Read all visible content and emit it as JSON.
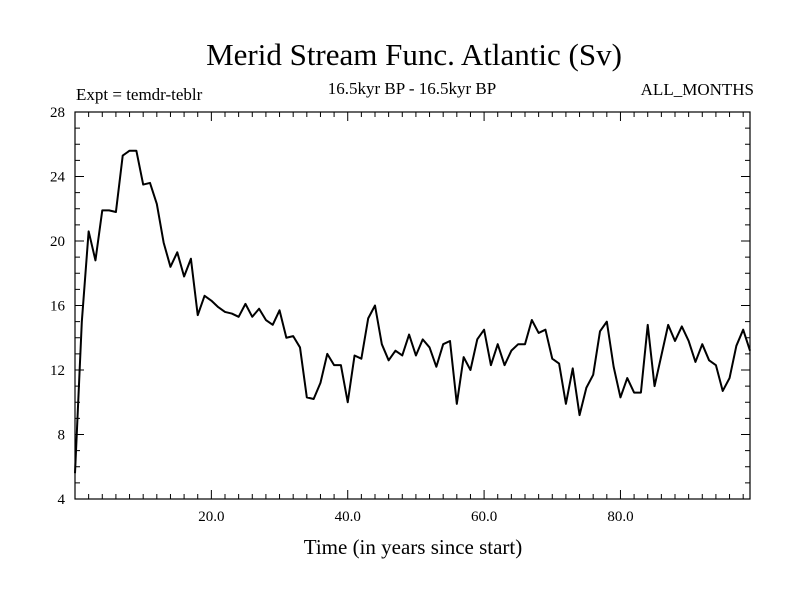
{
  "chart_data": {
    "type": "line",
    "title": "Merid Stream Func. Atlantic (Sv)",
    "subtitle_left": "Expt = temdr-teblr",
    "subtitle_center": "16.5kyr BP - 16.5kyr BP",
    "subtitle_right": "ALL_MONTHS",
    "xlabel": "Time (in years since start)",
    "ylabel": "",
    "xlim": [
      0,
      99
    ],
    "ylim": [
      4,
      28
    ],
    "x_ticks": [
      20,
      40,
      60,
      80
    ],
    "x_tick_labels": [
      "20.0",
      "40.0",
      "60.0",
      "80.0"
    ],
    "y_ticks": [
      4,
      8,
      12,
      16,
      20,
      24,
      28
    ],
    "y_tick_labels": [
      "4",
      "8",
      "12",
      "16",
      "20",
      "24",
      "28"
    ],
    "series": [
      {
        "name": "Merid Stream Func. Atlantic",
        "color": "#000000",
        "x": [
          0,
          1,
          2,
          3,
          4,
          5,
          6,
          7,
          8,
          9,
          10,
          11,
          12,
          13,
          14,
          15,
          16,
          17,
          18,
          19,
          20,
          21,
          22,
          23,
          24,
          25,
          26,
          27,
          28,
          29,
          30,
          31,
          32,
          33,
          34,
          35,
          36,
          37,
          38,
          39,
          40,
          41,
          42,
          43,
          44,
          45,
          46,
          47,
          48,
          49,
          50,
          51,
          52,
          53,
          54,
          55,
          56,
          57,
          58,
          59,
          60,
          61,
          62,
          63,
          64,
          65,
          66,
          67,
          68,
          69,
          70,
          71,
          72,
          73,
          74,
          75,
          76,
          77,
          78,
          79,
          80,
          81,
          82,
          83,
          84,
          85,
          86,
          87,
          88,
          89,
          90,
          91,
          92,
          93,
          94,
          95,
          96,
          97,
          98,
          99
        ],
        "values": [
          5.6,
          15.0,
          20.6,
          18.8,
          21.9,
          21.9,
          21.8,
          25.3,
          25.6,
          25.6,
          23.5,
          23.6,
          22.3,
          19.9,
          18.4,
          19.3,
          17.8,
          18.9,
          15.4,
          16.6,
          16.3,
          15.9,
          15.6,
          15.5,
          15.3,
          16.1,
          15.3,
          15.8,
          15.1,
          14.8,
          15.7,
          14.0,
          14.1,
          13.4,
          10.3,
          10.2,
          11.2,
          13.0,
          12.3,
          12.3,
          10.0,
          12.9,
          12.7,
          15.2,
          16.0,
          13.6,
          12.6,
          13.2,
          12.9,
          14.2,
          12.9,
          13.9,
          13.4,
          12.2,
          13.6,
          13.8,
          9.9,
          12.8,
          12.0,
          13.9,
          14.5,
          12.3,
          13.6,
          12.3,
          13.2,
          13.6,
          13.6,
          15.1,
          14.3,
          14.5,
          12.7,
          12.4,
          9.9,
          12.1,
          9.2,
          10.9,
          11.7,
          14.4,
          15.0,
          12.2,
          10.3,
          11.5,
          10.6,
          10.6,
          14.8,
          11.0,
          12.9,
          14.8,
          13.8,
          14.7,
          13.8,
          12.5,
          13.6,
          12.6,
          12.3,
          10.7,
          11.5,
          13.5,
          14.5,
          13.2
        ]
      }
    ]
  }
}
